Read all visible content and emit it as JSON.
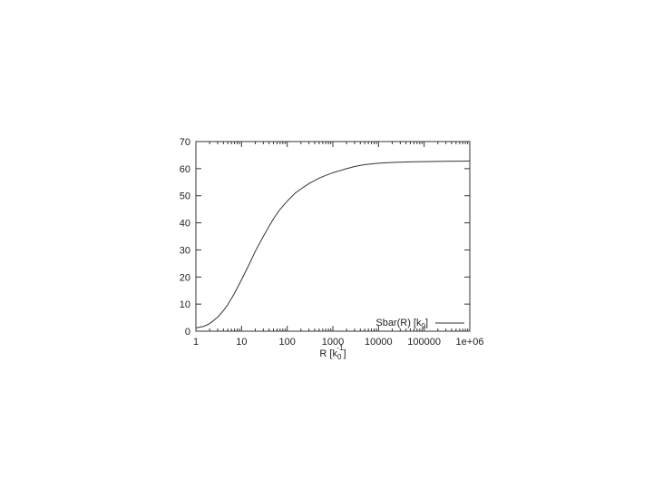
{
  "chart_data": {
    "type": "line",
    "title": "",
    "xlabel": "R [k_0^-1]",
    "xlabel_main": "R [k",
    "xlabel_sub": "0",
    "xlabel_sup": "-1",
    "xlabel_close": "]",
    "ylabel": "",
    "xscale": "log",
    "xlim": [
      1,
      1000000
    ],
    "ylim": [
      0,
      70
    ],
    "x_ticks": [
      1,
      10,
      100,
      1000,
      10000,
      100000,
      1000000
    ],
    "x_tick_labels": [
      "1",
      "10",
      "100",
      "1000",
      "10000",
      "100000",
      "1e+06"
    ],
    "y_ticks": [
      0,
      10,
      20,
      30,
      40,
      50,
      60,
      70
    ],
    "y_tick_labels": [
      "0",
      "10",
      "20",
      "30",
      "40",
      "50",
      "60",
      "70"
    ],
    "grid": false,
    "legend": {
      "position": "bottom-right",
      "main": "Sbar(R) [k",
      "sub": "0",
      "close": "]"
    },
    "series": [
      {
        "name": "Sbar(R) [k_0]",
        "color": "#333333",
        "x": [
          1,
          1.5,
          2,
          3,
          4,
          5,
          7,
          10,
          15,
          20,
          30,
          50,
          70,
          100,
          150,
          200,
          300,
          500,
          700,
          1000,
          2000,
          3000,
          5000,
          10000,
          20000,
          50000,
          100000,
          300000,
          1000000
        ],
        "y": [
          1.2,
          1.8,
          2.8,
          5.2,
          7.6,
          9.8,
          14.0,
          19.0,
          25.0,
          29.5,
          35.0,
          41.5,
          45.0,
          48.0,
          51.0,
          52.5,
          54.5,
          56.5,
          57.5,
          58.5,
          60.0,
          60.8,
          61.5,
          62.0,
          62.3,
          62.5,
          62.6,
          62.7,
          62.8
        ]
      }
    ]
  }
}
